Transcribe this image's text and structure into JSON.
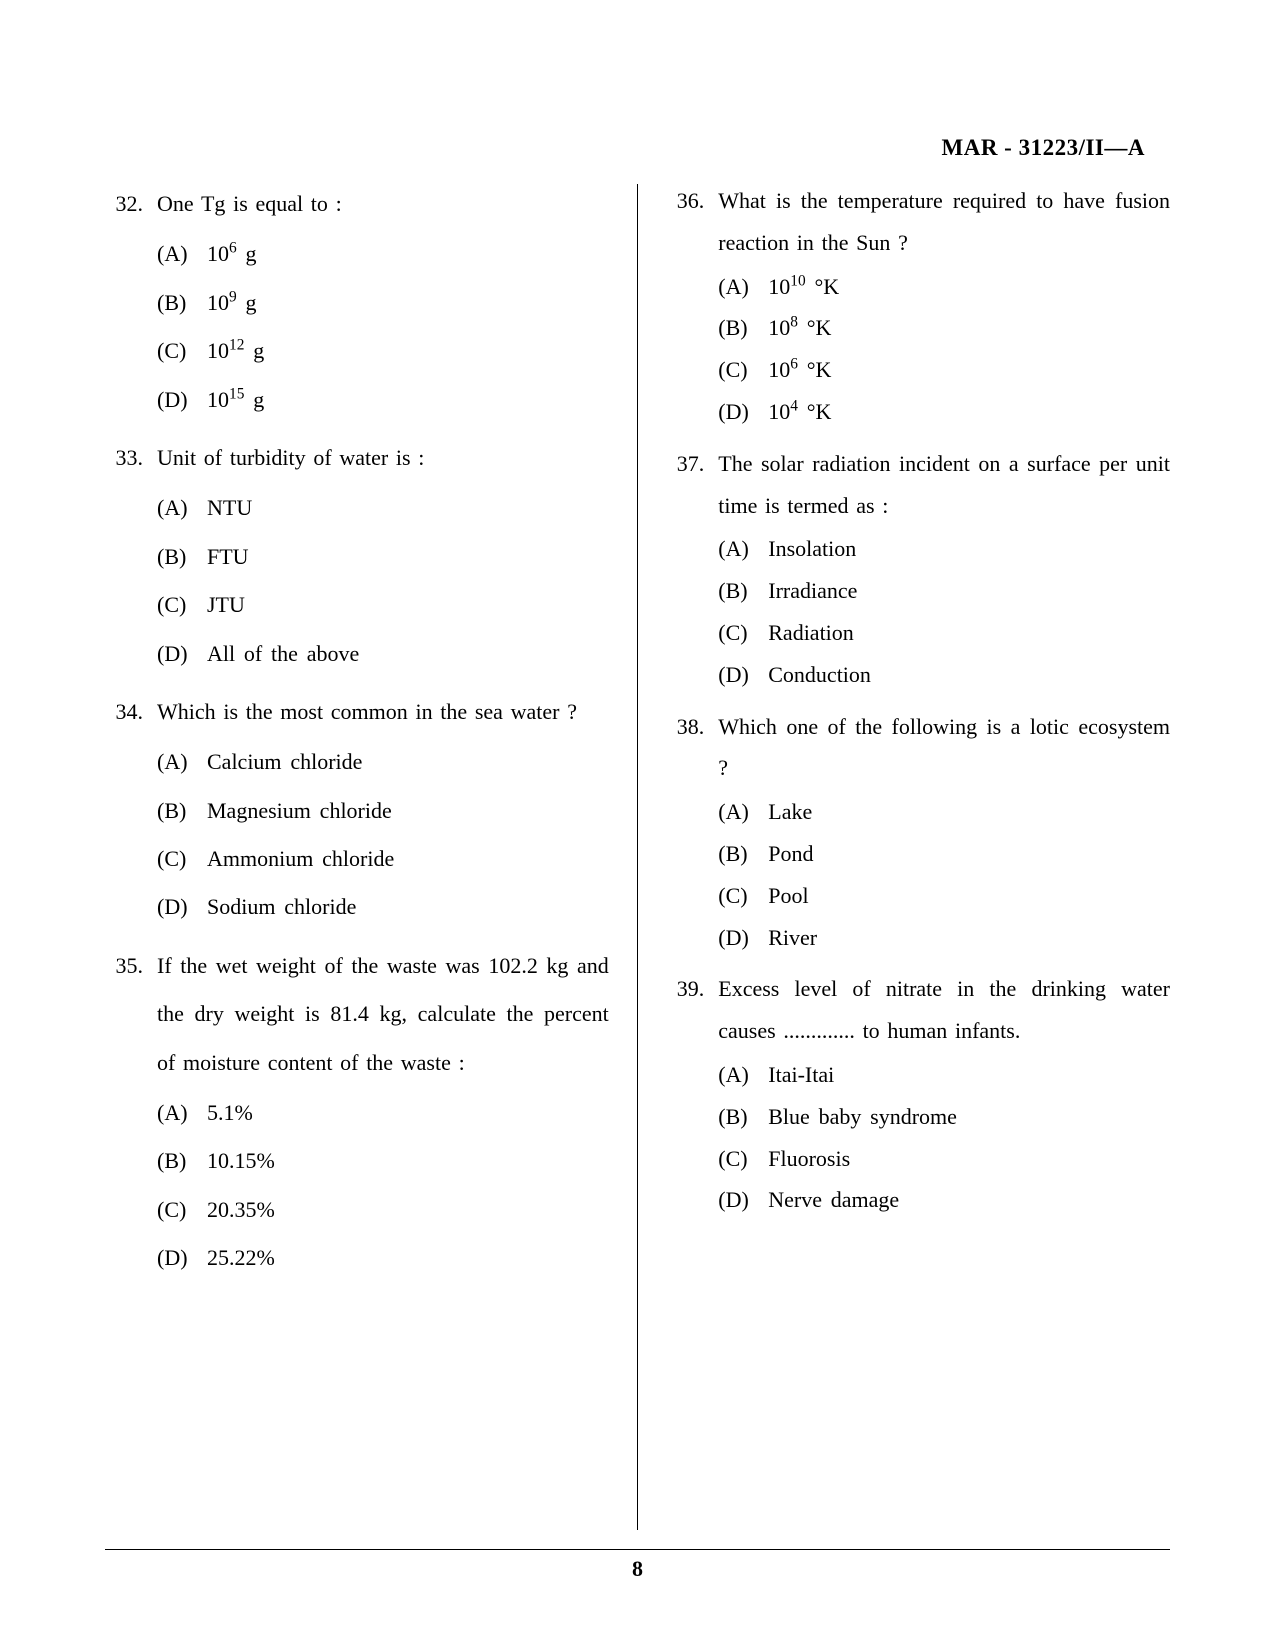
{
  "header": "MAR - 31223/II—A",
  "page_number": "8",
  "colors": {
    "text": "#000000",
    "background": "#ffffff",
    "rule": "#000000"
  },
  "typography": {
    "family": "Century Schoolbook",
    "body_size_pt": 16,
    "header_size_pt": 17,
    "header_weight": "bold"
  },
  "left_questions": [
    {
      "num": "32.",
      "text": "One Tg is equal to :",
      "options": [
        {
          "label": "(A)",
          "html": "10<sup>6</sup> g"
        },
        {
          "label": "(B)",
          "html": "10<sup>9</sup> g"
        },
        {
          "label": "(C)",
          "html": "10<sup>12</sup> g"
        },
        {
          "label": "(D)",
          "html": "10<sup>15</sup> g"
        }
      ]
    },
    {
      "num": "33.",
      "text": "Unit of turbidity of water is :",
      "options": [
        {
          "label": "(A)",
          "html": "NTU"
        },
        {
          "label": "(B)",
          "html": "FTU"
        },
        {
          "label": "(C)",
          "html": "JTU"
        },
        {
          "label": "(D)",
          "html": "All of the above"
        }
      ]
    },
    {
      "num": "34.",
      "text": "Which is the most common in the sea water ?",
      "options": [
        {
          "label": "(A)",
          "html": "Calcium chloride"
        },
        {
          "label": "(B)",
          "html": "Magnesium chloride"
        },
        {
          "label": "(C)",
          "html": "Ammonium chloride"
        },
        {
          "label": "(D)",
          "html": "Sodium chloride"
        }
      ]
    },
    {
      "num": "35.",
      "text": "If the wet weight of the waste was 102.2 kg and the dry weight is 81.4 kg, calculate the percent of moisture content of the waste :",
      "options": [
        {
          "label": "(A)",
          "html": "5.1%"
        },
        {
          "label": "(B)",
          "html": "10.15%"
        },
        {
          "label": "(C)",
          "html": "20.35%"
        },
        {
          "label": "(D)",
          "html": "25.22%"
        }
      ]
    }
  ],
  "right_questions": [
    {
      "num": "36.",
      "text": "What is the temperature required to have fusion reaction in the Sun ?",
      "tight": true,
      "options": [
        {
          "label": "(A)",
          "html": "10<sup>10</sup> °K"
        },
        {
          "label": "(B)",
          "html": "10<sup>8</sup> °K"
        },
        {
          "label": "(C)",
          "html": "10<sup>6</sup> °K"
        },
        {
          "label": "(D)",
          "html": "10<sup>4</sup> °K"
        }
      ]
    },
    {
      "num": "37.",
      "text": "The solar radiation incident on a surface per unit time is termed as :",
      "tight": true,
      "options": [
        {
          "label": "(A)",
          "html": "Insolation"
        },
        {
          "label": "(B)",
          "html": "Irradiance"
        },
        {
          "label": "(C)",
          "html": "Radiation"
        },
        {
          "label": "(D)",
          "html": "Conduction"
        }
      ]
    },
    {
      "num": "38.",
      "text": "Which one of the following is a lotic ecosystem ?",
      "tight": true,
      "options": [
        {
          "label": "(A)",
          "html": "Lake"
        },
        {
          "label": "(B)",
          "html": "Pond"
        },
        {
          "label": "(C)",
          "html": "Pool"
        },
        {
          "label": "(D)",
          "html": "River"
        }
      ]
    },
    {
      "num": "39.",
      "text": "Excess level of nitrate in the drinking water causes ............. to human infants.",
      "tight": true,
      "options": [
        {
          "label": "(A)",
          "html": "Itai-Itai"
        },
        {
          "label": "(B)",
          "html": "Blue baby syndrome"
        },
        {
          "label": "(C)",
          "html": "Fluorosis"
        },
        {
          "label": "(D)",
          "html": "Nerve damage"
        }
      ]
    }
  ]
}
